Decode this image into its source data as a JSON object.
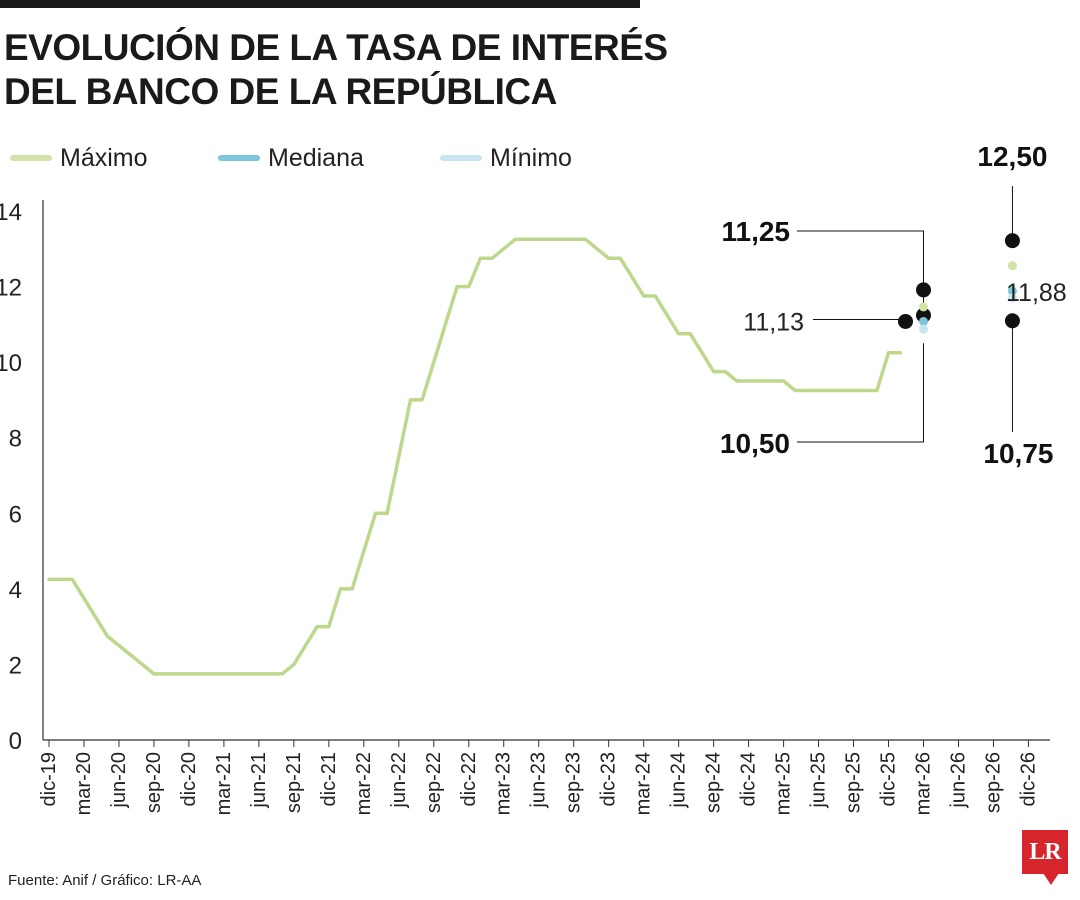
{
  "title_lines": [
    "EVOLUCIÓN DE LA TASA DE INTERÉS",
    "DEL BANCO DE LA REPÚBLICA"
  ],
  "legend": [
    {
      "label": "Máximo",
      "color": "#d2e3a6"
    },
    {
      "label": "Mediana",
      "color": "#7cc6dd"
    },
    {
      "label": "Mínimo",
      "color": "#c8e6f0"
    }
  ],
  "colors": {
    "line": "#bdd88b",
    "marker": "#111111",
    "axis": "#333333"
  },
  "footer": "Fuente: Anif / Gráfico: LR-AA",
  "logo_text": "LR",
  "chart_data": {
    "type": "line",
    "title": "EVOLUCIÓN DE LA TASA DE INTERÉS DEL BANCO DE LA REPÚBLICA",
    "xlabel": "",
    "ylabel": "",
    "ylim": [
      0,
      14
    ],
    "yticks": [
      0,
      2,
      4,
      6,
      8,
      10,
      12,
      14
    ],
    "grid": false,
    "legend_position": "top",
    "x_labels": [
      "dic-19",
      "mar-20",
      "jun-20",
      "sep-20",
      "dic-20",
      "mar-21",
      "jun-21",
      "sep-21",
      "dic-21",
      "mar-22",
      "jun-22",
      "sep-22",
      "dic-22",
      "mar-23",
      "jun-23",
      "sep-23",
      "dic-23",
      "mar-24",
      "jun-24",
      "sep-24",
      "dic-24",
      "mar-25",
      "jun-25",
      "sep-25",
      "dic-25",
      "mar-26",
      "jun-26",
      "sep-26",
      "dic-26"
    ],
    "series": [
      {
        "name": "",
        "x": [
          "dic-19",
          "ene-20",
          "feb-20",
          "mar-20",
          "abr-20",
          "may-20",
          "jun-20",
          "jul-20",
          "ago-20",
          "sep-20",
          "oct-20",
          "nov-20",
          "dic-20",
          "ene-21",
          "feb-21",
          "mar-21",
          "abr-21",
          "may-21",
          "jun-21",
          "jul-21",
          "ago-21",
          "sep-21",
          "oct-21",
          "nov-21",
          "dic-21",
          "ene-22",
          "feb-22",
          "mar-22",
          "abr-22",
          "may-22",
          "jun-22",
          "jul-22",
          "ago-22",
          "sep-22",
          "oct-22",
          "nov-22",
          "dic-22",
          "ene-23",
          "feb-23",
          "mar-23",
          "abr-23",
          "may-23",
          "jun-23",
          "jul-23",
          "ago-23",
          "sep-23",
          "oct-23",
          "nov-23",
          "dic-23",
          "ene-24",
          "feb-24",
          "mar-24",
          "abr-24",
          "may-24",
          "jun-24",
          "jul-24",
          "ago-24",
          "sep-24",
          "oct-24",
          "nov-24",
          "dic-24",
          "ene-25",
          "feb-25",
          "mar-25",
          "abr-25",
          "may-25",
          "jun-25",
          "jul-25",
          "ago-25",
          "sep-25",
          "oct-25",
          "nov-25",
          "dic-25",
          "ene-26"
        ],
        "values": [
          4.25,
          4.25,
          4.25,
          3.75,
          3.25,
          2.75,
          2.5,
          2.25,
          2.0,
          1.75,
          1.75,
          1.75,
          1.75,
          1.75,
          1.75,
          1.75,
          1.75,
          1.75,
          1.75,
          1.75,
          1.75,
          2.0,
          2.5,
          3.0,
          3.0,
          4.0,
          4.0,
          5.0,
          6.0,
          6.0,
          7.5,
          9.0,
          9.0,
          10.0,
          11.0,
          12.0,
          12.0,
          12.75,
          12.75,
          13.0,
          13.25,
          13.25,
          13.25,
          13.25,
          13.25,
          13.25,
          13.25,
          13.0,
          12.75,
          12.75,
          12.25,
          11.75,
          11.75,
          11.25,
          10.75,
          10.75,
          10.25,
          9.75,
          9.75,
          9.5,
          9.5,
          9.5,
          9.5,
          9.5,
          9.25,
          9.25,
          9.25,
          9.25,
          9.25,
          9.25,
          9.25,
          9.25,
          10.25,
          10.25
        ]
      }
    ],
    "expectations": [
      {
        "period": "mar-26",
        "max": 11.25,
        "median": 11.13,
        "min": 10.5,
        "labels": [
          "11,25",
          "11,13",
          "10,50"
        ]
      },
      {
        "period": "dic-26",
        "max": 12.5,
        "median": 11.88,
        "min": 10.75,
        "labels": [
          "12,50",
          "11,88",
          "10,75"
        ]
      }
    ]
  }
}
